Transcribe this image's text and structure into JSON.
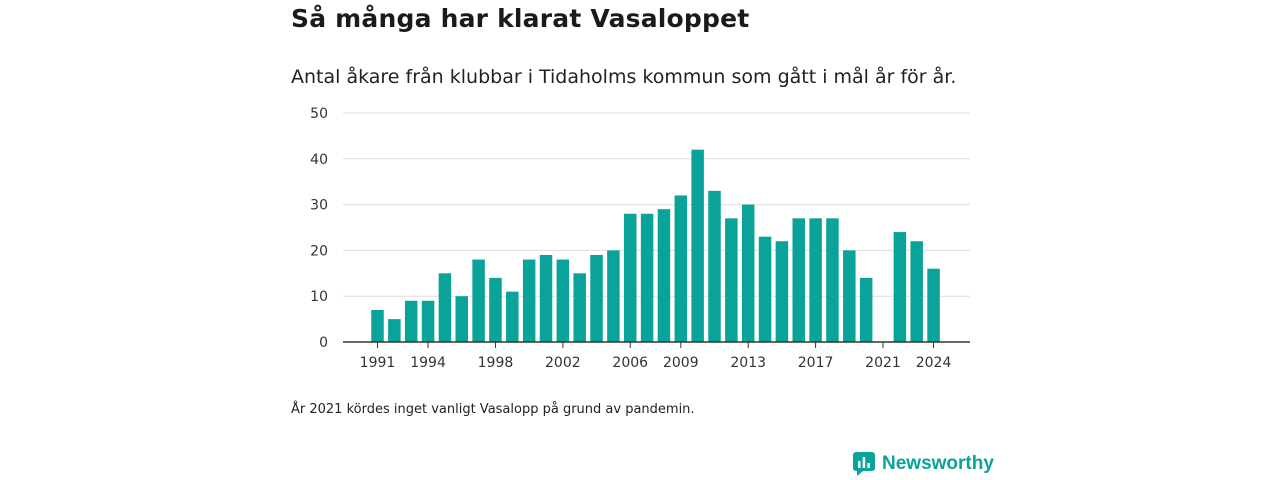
{
  "header": {
    "title": "Så många har klarat Vasaloppet",
    "subtitle": "Antal åkare från klubbar i Tidaholms kommun som gått i mål år för år."
  },
  "footer": {
    "note": "År 2021 kördes inget vanligt Vasalopp på grund av pandemin.",
    "brand": "Newsworthy"
  },
  "colors": {
    "bar": "#0aa39a",
    "grid": "#dddddd",
    "axis": "#333333"
  },
  "chart_data": {
    "type": "bar",
    "x": [
      1991,
      1992,
      1993,
      1994,
      1995,
      1996,
      1997,
      1998,
      1999,
      2000,
      2001,
      2002,
      2003,
      2004,
      2005,
      2006,
      2007,
      2008,
      2009,
      2010,
      2011,
      2012,
      2013,
      2014,
      2015,
      2016,
      2017,
      2018,
      2019,
      2020,
      2021,
      2022,
      2023,
      2024
    ],
    "values": [
      7,
      5,
      9,
      9,
      15,
      10,
      18,
      14,
      11,
      18,
      19,
      18,
      15,
      19,
      20,
      28,
      28,
      29,
      32,
      42,
      33,
      27,
      30,
      23,
      22,
      27,
      27,
      27,
      20,
      14,
      null,
      24,
      22,
      16
    ],
    "xticks": [
      1991,
      1994,
      1998,
      2002,
      2006,
      2009,
      2013,
      2017,
      2021,
      2024
    ],
    "yticks": [
      0,
      10,
      20,
      30,
      40,
      50
    ],
    "ylim": [
      0,
      50
    ],
    "grid": true
  }
}
